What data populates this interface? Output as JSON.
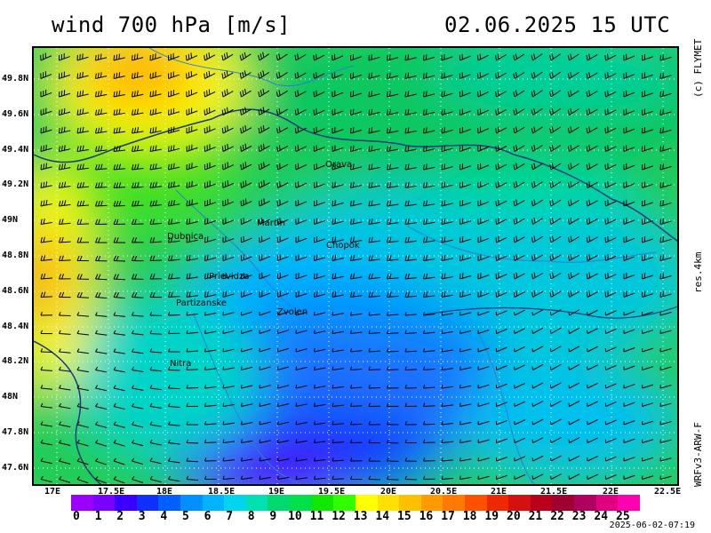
{
  "header": {
    "title": "wind 700 hPa [m/s]",
    "datetime": "02.06.2025   15 UTC"
  },
  "side_labels": {
    "copyright": "(c) FLYMET",
    "resolution": "res.4km",
    "model": "WRFv3-ARW-F"
  },
  "axes": {
    "lat_labels": [
      "49.8N",
      "49.6N",
      "49.4N",
      "49.2N",
      "49N",
      "48.8N",
      "48.6N",
      "48.4N",
      "48.2N",
      "48N",
      "47.8N",
      "47.6N"
    ],
    "lon_labels": [
      "17E",
      "17.5E",
      "18E",
      "18.5E",
      "19E",
      "19.5E",
      "20E",
      "20.5E",
      "21E",
      "21.5E",
      "22E",
      "22.5E"
    ]
  },
  "cities": [
    {
      "name": "Orava"
    },
    {
      "name": "Martin"
    },
    {
      "name": "Dubnica"
    },
    {
      "name": "Chopok"
    },
    {
      "name": "Prievidza"
    },
    {
      "name": "Partizanske"
    },
    {
      "name": "Zvolen"
    },
    {
      "name": "Nitra"
    }
  ],
  "colorbar": {
    "labels": [
      "0",
      "1",
      "2",
      "3",
      "4",
      "5",
      "6",
      "7",
      "8",
      "9",
      "10",
      "11",
      "12",
      "13",
      "14",
      "15",
      "16",
      "17",
      "18",
      "19",
      "20",
      "21",
      "22",
      "23",
      "24",
      "25"
    ],
    "colors": [
      "#9b00ff",
      "#7a00ff",
      "#3a00ff",
      "#1030ff",
      "#0060ff",
      "#0090ff",
      "#00b4ff",
      "#00d4ee",
      "#00e0b0",
      "#00d870",
      "#00e048",
      "#10e800",
      "#30ff00",
      "#ffff00",
      "#ffe000",
      "#ffc000",
      "#ff9a00",
      "#ff7a00",
      "#ff5000",
      "#ee2800",
      "#d41010",
      "#b80018",
      "#a00030",
      "#b00060",
      "#e00080",
      "#ff00b0"
    ]
  },
  "timestamp": "2025-06-02-07:19",
  "colors": {
    "border": "#1a3a7a",
    "barb": "#000000",
    "grid": "#ffffff"
  }
}
